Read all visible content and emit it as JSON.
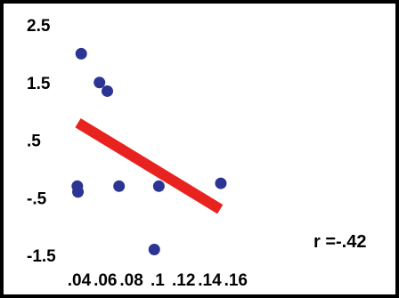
{
  "chart_data": {
    "type": "scatter",
    "title": "",
    "xlabel": "",
    "ylabel": "",
    "xlim": [
      0.03,
      0.16
    ],
    "ylim": [
      -1.5,
      2.5
    ],
    "x_ticks": [
      {
        "value": 0.04,
        "label": ".04"
      },
      {
        "value": 0.06,
        "label": ".06"
      },
      {
        "value": 0.08,
        "label": ".08"
      },
      {
        "value": 0.1,
        "label": ".1"
      },
      {
        "value": 0.12,
        "label": ".12"
      },
      {
        "value": 0.14,
        "label": ".14"
      },
      {
        "value": 0.16,
        "label": ".16"
      }
    ],
    "y_ticks": [
      {
        "value": 2.5,
        "label": "2.5"
      },
      {
        "value": 1.5,
        "label": "1.5"
      },
      {
        "value": 0.5,
        "label": ".5"
      },
      {
        "value": -0.5,
        "label": "-.5"
      },
      {
        "value": -1.5,
        "label": "-1.5"
      }
    ],
    "points": [
      {
        "x": 0.0385,
        "y": -0.3
      },
      {
        "x": 0.039,
        "y": -0.4
      },
      {
        "x": 0.0415,
        "y": 2.0
      },
      {
        "x": 0.0555,
        "y": 1.5
      },
      {
        "x": 0.0615,
        "y": 1.35
      },
      {
        "x": 0.0705,
        "y": -0.3
      },
      {
        "x": 0.0975,
        "y": -1.4
      },
      {
        "x": 0.101,
        "y": -0.3
      },
      {
        "x": 0.1485,
        "y": -0.25
      }
    ],
    "point_color": "#2c3494",
    "trendline": {
      "x1": 0.039,
      "y1": 0.8,
      "x2": 0.148,
      "y2": -0.7,
      "color": "#e8231f"
    },
    "annotation": "r =-.42",
    "grid": false
  }
}
